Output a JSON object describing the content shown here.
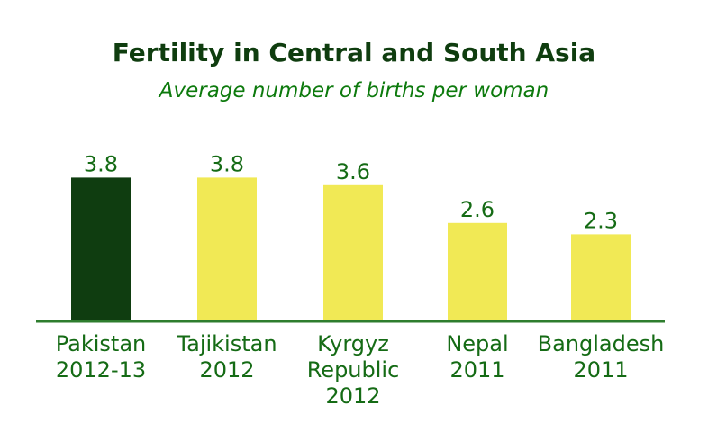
{
  "chart_data": {
    "type": "bar",
    "title": "Fertility in Central and South Asia",
    "subtitle": "Average number of births per woman",
    "categories": [
      [
        "Pakistan",
        "2012-13"
      ],
      [
        "Tajikistan",
        "2012"
      ],
      [
        "Kyrgyz",
        "Republic",
        "2012"
      ],
      [
        "Nepal",
        "2011"
      ],
      [
        "Bangladesh",
        "2011"
      ]
    ],
    "values": [
      3.8,
      3.8,
      3.6,
      2.6,
      2.3
    ],
    "data_labels": [
      "3.8",
      "3.8",
      "3.6",
      "2.6",
      "2.3"
    ],
    "bar_colors": [
      "#0f3d10",
      "#f1e955",
      "#f1e955",
      "#f1e955",
      "#f1e955"
    ],
    "ylim": [
      0,
      4.5
    ],
    "grid": false,
    "xlabel": "",
    "ylabel": ""
  },
  "colors": {
    "title": "#0f3d0f",
    "subtitle": "#0d7a0d",
    "labels": "#156b15",
    "baseline": "#2e7d2e",
    "highlight_bar": "#0f3d10",
    "other_bars": "#f1e955"
  }
}
